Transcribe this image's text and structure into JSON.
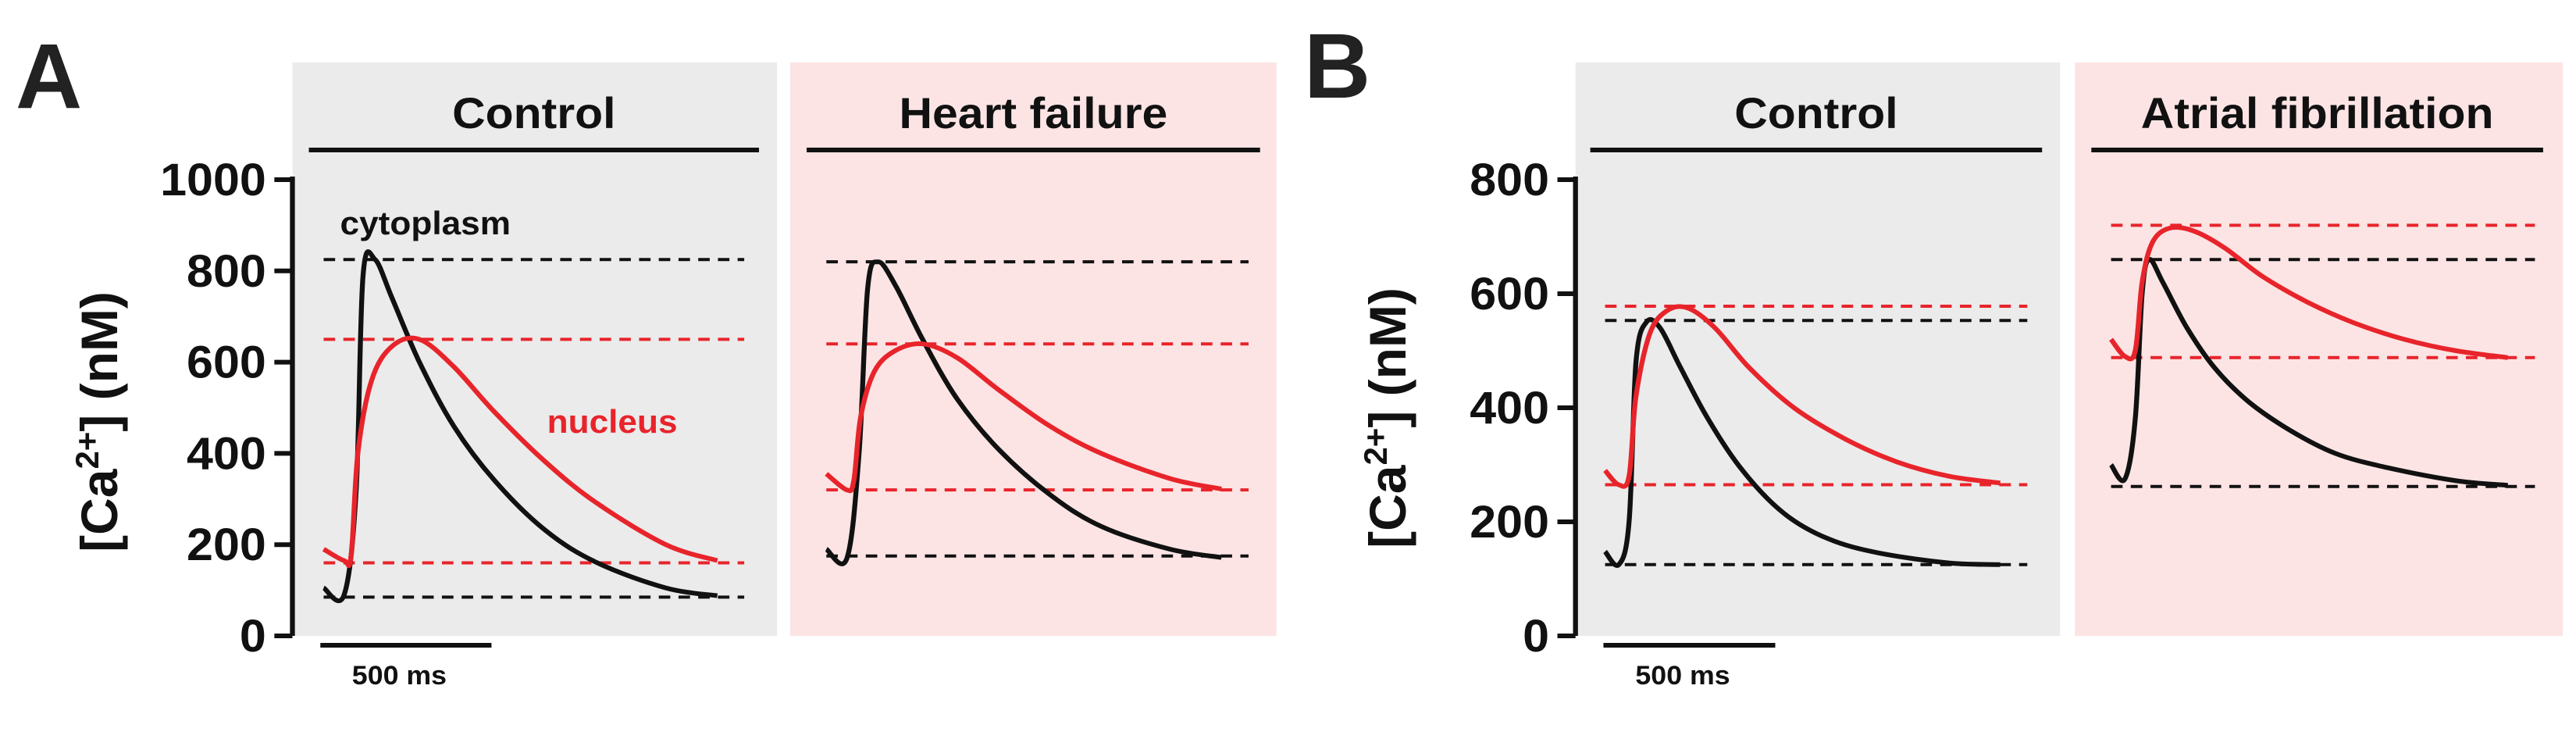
{
  "colors": {
    "control_bg": "#ebebeb",
    "disease_bg": "#fce4e4",
    "cytoplasm": "#111111",
    "nucleus": "#e8242b"
  },
  "chart_data": [
    {
      "type": "line",
      "panel_letter": "A",
      "ylabel": "[Ca2+] (nM)",
      "ylabel_parts": {
        "pre": "[Ca",
        "sup": "2+",
        "post": "] (nM)"
      },
      "ylim": [
        0,
        1000
      ],
      "yticks": [
        0,
        200,
        400,
        600,
        800,
        1000
      ],
      "tick_labels": [
        "0",
        "200",
        "400",
        "600",
        "800",
        "1000"
      ],
      "time_range_ms": [
        0,
        1200
      ],
      "scale_bar": {
        "label": "500 ms",
        "value_ms": 500
      },
      "annotations": {
        "cytoplasm": "cytoplasm",
        "nucleus": "nucleus"
      },
      "subpanels": [
        {
          "title": "Control",
          "condition": "control",
          "series": [
            {
              "name": "cytoplasm",
              "x": [
                0,
                60,
                95,
                115,
                150,
                200,
                280,
                380,
                500,
                650,
                800,
                1000,
                1150
              ],
              "y": [
                105,
                90,
                320,
                790,
                825,
                740,
                600,
                460,
                340,
                230,
                160,
                105,
                88
              ]
            },
            {
              "name": "nucleus",
              "x": [
                0,
                60,
                80,
                100,
                140,
                200,
                280,
                380,
                500,
                650,
                800,
                1000,
                1150
              ],
              "y": [
                190,
                165,
                175,
                400,
                560,
                635,
                650,
                590,
                490,
                380,
                290,
                200,
                165
              ]
            }
          ],
          "dashed_levels": [
            {
              "series": "cytoplasm",
              "value": 825
            },
            {
              "series": "nucleus",
              "value": 650
            },
            {
              "series": "nucleus",
              "value": 160
            },
            {
              "series": "cytoplasm",
              "value": 85
            }
          ]
        },
        {
          "title": "Heart failure",
          "condition": "disease",
          "series": [
            {
              "name": "cytoplasm",
              "x": [
                0,
                60,
                95,
                120,
                150,
                200,
                280,
                380,
                500,
                650,
                800,
                1000,
                1150
              ],
              "y": [
                190,
                170,
                400,
                760,
                820,
                770,
                650,
                520,
                410,
                310,
                240,
                190,
                172
              ]
            },
            {
              "name": "nucleus",
              "x": [
                0,
                60,
                80,
                100,
                140,
                200,
                280,
                380,
                500,
                650,
                800,
                1000,
                1150
              ],
              "y": [
                355,
                320,
                340,
                480,
                580,
                625,
                640,
                610,
                540,
                460,
                400,
                345,
                322
              ]
            }
          ],
          "dashed_levels": [
            {
              "series": "cytoplasm",
              "value": 820
            },
            {
              "series": "nucleus",
              "value": 640
            },
            {
              "series": "nucleus",
              "value": 320
            },
            {
              "series": "cytoplasm",
              "value": 175
            }
          ]
        }
      ]
    },
    {
      "type": "line",
      "panel_letter": "B",
      "ylabel": "[Ca2+] (nM)",
      "ylabel_parts": {
        "pre": "[Ca",
        "sup": "2+",
        "post": "] (nM)"
      },
      "ylim": [
        0,
        800
      ],
      "yticks": [
        0,
        200,
        400,
        600,
        800
      ],
      "tick_labels": [
        "0",
        "200",
        "400",
        "600",
        "800"
      ],
      "time_range_ms": [
        0,
        1200
      ],
      "scale_bar": {
        "label": "500 ms",
        "value_ms": 500
      },
      "subpanels": [
        {
          "title": "Control",
          "condition": "control",
          "series": [
            {
              "name": "cytoplasm",
              "x": [
                0,
                40,
                70,
                90,
                120,
                160,
                220,
                300,
                400,
                520,
                650,
                800,
                1000,
                1150
              ],
              "y": [
                148,
                125,
                200,
                480,
                550,
                540,
                470,
                380,
                290,
                215,
                170,
                145,
                128,
                125
              ]
            },
            {
              "name": "nucleus",
              "x": [
                0,
                40,
                70,
                90,
                130,
                180,
                240,
                320,
                420,
                550,
                700,
                850,
                1000,
                1150
              ],
              "y": [
                290,
                265,
                280,
                420,
                530,
                570,
                575,
                540,
                470,
                400,
                345,
                305,
                280,
                268
              ]
            }
          ],
          "dashed_levels": [
            {
              "series": "nucleus",
              "value": 578
            },
            {
              "series": "cytoplasm",
              "value": 553
            },
            {
              "series": "nucleus",
              "value": 265
            },
            {
              "series": "cytoplasm",
              "value": 125
            }
          ]
        },
        {
          "title": "Atrial fibrillation",
          "condition": "disease",
          "series": [
            {
              "name": "cytoplasm",
              "x": [
                0,
                40,
                70,
                90,
                110,
                150,
                220,
                300,
                400,
                520,
                650,
                800,
                1000,
                1150
              ],
              "y": [
                300,
                275,
                380,
                600,
                660,
                620,
                540,
                470,
                410,
                360,
                320,
                295,
                272,
                264
              ]
            },
            {
              "name": "nucleus",
              "x": [
                0,
                40,
                70,
                90,
                120,
                170,
                240,
                330,
                440,
                570,
                700,
                850,
                1000,
                1150
              ],
              "y": [
                520,
                490,
                500,
                620,
                690,
                715,
                710,
                680,
                630,
                585,
                550,
                520,
                500,
                488
              ]
            }
          ],
          "dashed_levels": [
            {
              "series": "nucleus",
              "value": 720
            },
            {
              "series": "cytoplasm",
              "value": 660
            },
            {
              "series": "nucleus",
              "value": 488
            },
            {
              "series": "cytoplasm",
              "value": 262
            }
          ]
        }
      ]
    }
  ]
}
